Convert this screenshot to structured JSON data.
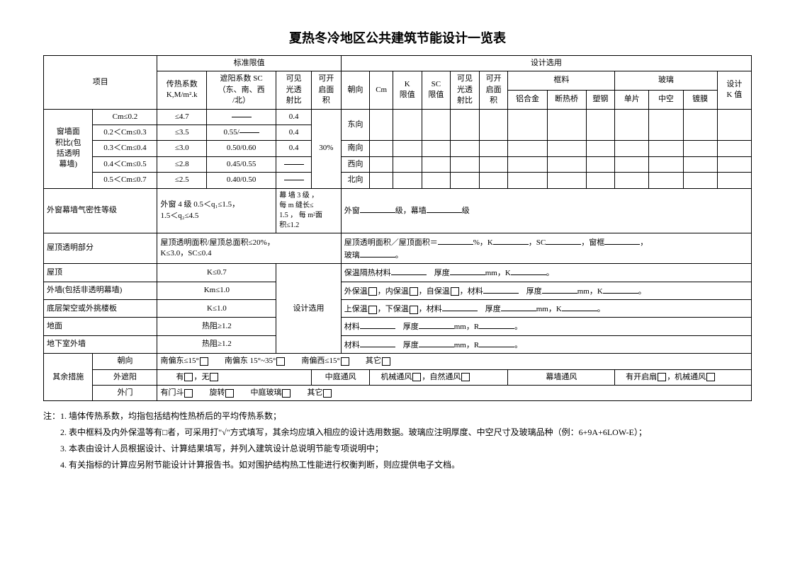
{
  "title": "夏热冬冷地区公共建筑节能设计一览表",
  "headers": {
    "item": "项目",
    "limit": "标准限值",
    "coef": "传热系数\nK,M/m².k",
    "sc": "遮阳系数 SC\n（东、南、西\n/北）",
    "visible": "可见\n光透\n射比",
    "open": "可开\n启面\n积",
    "design": "设计选用",
    "orient": "朝向",
    "cm": "Cm",
    "klim": "K\n限值",
    "sclim": "SC\n限值",
    "visible2": "可见\n光透\n射比",
    "open2": "可开\n启面\n积",
    "frame": "框料",
    "glass": "玻璃",
    "al": "铝合金",
    "bridge": "断热桥",
    "plastic": "塑钢",
    "single": "单片",
    "hollow": "中空",
    "coated": "镀膜",
    "kval": "设计\nK 值"
  },
  "rowhead": "窗墙面\n积比(包\n括透明\n幕墙)",
  "rows": [
    {
      "cm": "Cm≤0.2",
      "k": "≤4.7",
      "sc": "—",
      "v": "0.4",
      "o": "",
      "dir": "东向"
    },
    {
      "cm": "0.2＜Cm≤0.3",
      "k": "≤3.5",
      "sc": "0.55/—",
      "v": "0.4",
      "o": "",
      "dir": ""
    },
    {
      "cm": "0.3＜Cm≤0.4",
      "k": "≤3.0",
      "sc": "0.50/0.60",
      "v": "0.4",
      "o": "30%",
      "dir": "南向"
    },
    {
      "cm": "0.4＜Cm≤0.5",
      "k": "≤2.8",
      "sc": "0.45/0.55",
      "v": "—",
      "o": "",
      "dir": "西向"
    },
    {
      "cm": "0.5＜Cm≤0.7",
      "k": "≤2.5",
      "sc": "0.40/0.50",
      "v": "—",
      "o": "",
      "dir": "北向"
    }
  ],
  "airtight": {
    "label": "外窗幕墙气密性等级",
    "limit": "外窗 4 级 0.5＜q₁≤1.5，\n1.5＜q₂≤4.5",
    "right": "幕 墙 3 级 ，\n每 m 缝长≤\n1.5 ， 每 m²面\n积≤1.2",
    "design_prefix": "外窗",
    "design_mid": "级，幕墙",
    "design_suffix": "级"
  },
  "roof_trans": {
    "label": "屋顶透明部分",
    "limit": "屋顶透明面积/屋顶总面积≤20%，\nK≤3.0，SC≤0.4",
    "design": "屋顶透明面积／屋顶面积＝____%，K____，SC____，窗框____，\n玻璃____。"
  },
  "simple_rows": [
    {
      "label": "屋顶",
      "val": "K≤0.7",
      "rlabel": "",
      "design": "保温隔热材料____ 厚度____mm，K____。"
    },
    {
      "label": "外墙(包括非透明幕墙)",
      "val": "Km≤1.0",
      "rlabel": "设计选用",
      "design": "外保温□，内保温□，自保温□，材料____ 厚度____mm，K____。"
    },
    {
      "label": "底层架空或外挑楼板",
      "val": "K≤1.0",
      "rlabel": "",
      "design": "上保温□，下保温□，材料____ 厚度____mm，K____。"
    },
    {
      "label": "地面",
      "val": "热阻≥1.2",
      "rlabel": "",
      "design": "材料____ 厚度____mm，R____。"
    },
    {
      "label": "地下室外墙",
      "val": "热阻≥1.2",
      "rlabel": "",
      "design": "材料____ 厚度____mm，R____。"
    }
  ],
  "other": {
    "label": "其余措施",
    "r1": {
      "l": "朝向",
      "c1": "南偏东≤15°□   南偏东 15°~35°□   南偏西≤15°□   其它□"
    },
    "r2": {
      "l": "外遮阳",
      "c1": "有□，无□",
      "c2": "中庭通风",
      "c3": "机械通风□，自然通风□",
      "c4": "幕墙通风",
      "c5": "有开启扇□，机械通风□"
    },
    "r3": {
      "l": "外门",
      "c1": "有门斗□   旋转□   中庭玻璃□   其它□"
    }
  },
  "notes": [
    "注：1. 墙体传热系数，均指包括结构性热桥后的平均传热系数；",
    "　　2. 表中框料及内外保温等有□者，可采用打\"√\"方式填写，其余均应填入相应的设计选用数据。玻璃应注明厚度、中空尺寸及玻璃品种（例：6+9A+6LOW-E）；",
    "　　3. 本表由设计人员根据设计、计算结果填写，并列入建筑设计总说明节能专项说明中；",
    "　　4. 有关指标的计算应另附节能设计计算报告书。如对围护结构热工性能进行权衡判断，则应提供电子文档。"
  ]
}
